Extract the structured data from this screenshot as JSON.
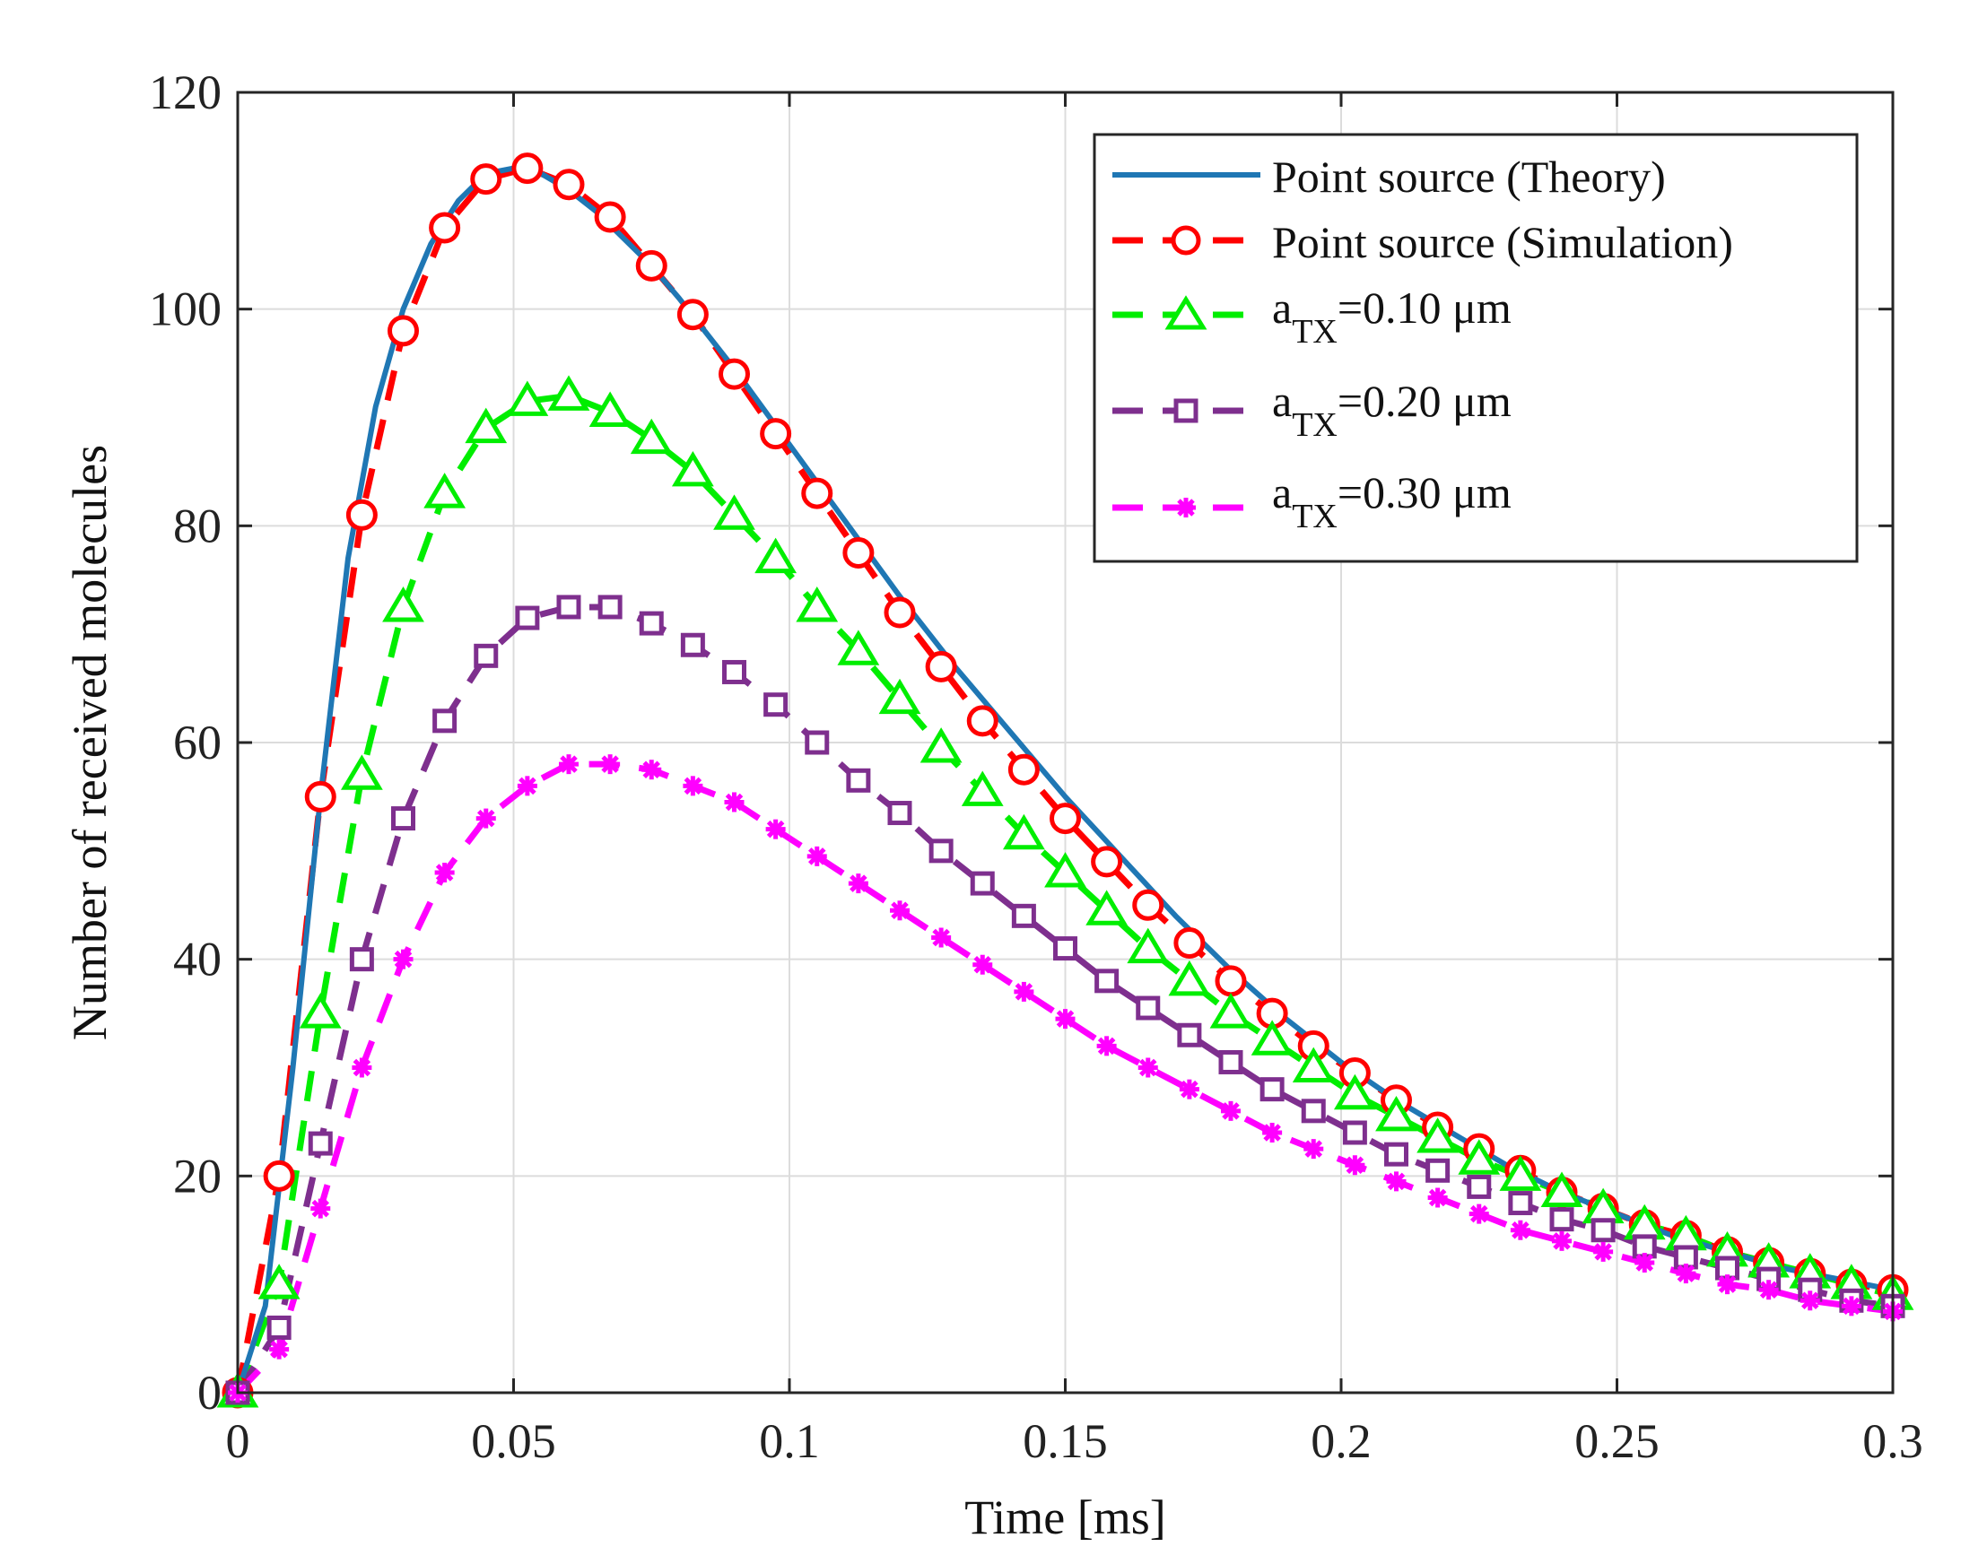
{
  "chart_data": {
    "type": "line",
    "title": "",
    "xlabel": "Time [ms]",
    "ylabel": "Number of received molecules",
    "xlim": [
      0,
      0.3
    ],
    "ylim": [
      0,
      120
    ],
    "grid": true,
    "legend_position": "top-right",
    "xticks": [
      0,
      0.05,
      0.1,
      0.15,
      0.2,
      0.25,
      0.3
    ],
    "xtick_labels": [
      "0",
      "0.05",
      "0.1",
      "0.15",
      "0.2",
      "0.25",
      "0.3"
    ],
    "yticks": [
      0,
      20,
      40,
      60,
      80,
      100,
      120
    ],
    "ytick_labels": [
      "0",
      "20",
      "40",
      "60",
      "80",
      "100",
      "120"
    ],
    "theory": {
      "name": "Point source (Theory)",
      "color": "#1f77b4",
      "style": "solid",
      "x": [
        0,
        0.005,
        0.01,
        0.015,
        0.02,
        0.025,
        0.03,
        0.035,
        0.04,
        0.045,
        0.05,
        0.055,
        0.06,
        0.065,
        0.07,
        0.075,
        0.08,
        0.09,
        0.1,
        0.11,
        0.12,
        0.13,
        0.14,
        0.15,
        0.16,
        0.17,
        0.18,
        0.19,
        0.2,
        0.21,
        0.22,
        0.23,
        0.24,
        0.25,
        0.26,
        0.27,
        0.28,
        0.29,
        0.3
      ],
      "y": [
        0,
        8,
        30,
        55,
        77,
        91,
        100,
        106,
        110,
        112.5,
        113,
        112.5,
        111,
        109,
        106.5,
        104,
        101,
        94.5,
        87.5,
        80.5,
        73.5,
        67,
        61,
        55,
        49.5,
        44,
        39,
        34.5,
        30.5,
        27,
        24,
        21,
        18.5,
        16.5,
        14.5,
        13,
        11.5,
        10.5,
        9.5
      ]
    },
    "series": [
      {
        "name": "Point source (Simulation)",
        "marker": "circle",
        "color": "#ff0000",
        "x": [
          0,
          0.0075,
          0.015,
          0.0225,
          0.03,
          0.0375,
          0.045,
          0.0525,
          0.06,
          0.0675,
          0.075,
          0.0825,
          0.09,
          0.0975,
          0.105,
          0.1125,
          0.12,
          0.1275,
          0.135,
          0.1425,
          0.15,
          0.1575,
          0.165,
          0.1725,
          0.18,
          0.1875,
          0.195,
          0.2025,
          0.21,
          0.2175,
          0.225,
          0.2325,
          0.24,
          0.2475,
          0.255,
          0.2625,
          0.27,
          0.2775,
          0.285,
          0.2925,
          0.3
        ],
        "values": [
          0,
          20,
          55,
          81,
          98,
          107.5,
          112,
          113,
          111.5,
          108.5,
          104,
          99.5,
          94,
          88.5,
          83,
          77.5,
          72,
          67,
          62,
          57.5,
          53,
          49,
          45,
          41.5,
          38,
          35,
          32,
          29.5,
          27,
          24.5,
          22.5,
          20.5,
          18.5,
          17,
          15.5,
          14.5,
          13,
          12,
          11,
          10,
          9.5
        ]
      },
      {
        "name": "a",
        "name_sub": "TX",
        "name_rest": "=0.10 μm",
        "marker": "triangle",
        "color": "#00ee00",
        "x": [
          0,
          0.0075,
          0.015,
          0.0225,
          0.03,
          0.0375,
          0.045,
          0.0525,
          0.06,
          0.0675,
          0.075,
          0.0825,
          0.09,
          0.0975,
          0.105,
          0.1125,
          0.12,
          0.1275,
          0.135,
          0.1425,
          0.15,
          0.1575,
          0.165,
          0.1725,
          0.18,
          0.1875,
          0.195,
          0.2025,
          0.21,
          0.2175,
          0.225,
          0.2325,
          0.24,
          0.2475,
          0.255,
          0.2625,
          0.27,
          0.2775,
          0.285,
          0.2925,
          0.3
        ],
        "values": [
          0,
          10,
          35,
          57,
          72.5,
          83,
          89,
          91.5,
          92,
          90.5,
          88,
          85,
          81,
          77,
          72.5,
          68.5,
          64,
          59.5,
          55.5,
          51.5,
          48,
          44.5,
          41,
          38,
          35,
          32.5,
          30,
          27.5,
          25.5,
          23.5,
          21.5,
          20,
          18.5,
          17,
          15.5,
          14.5,
          13,
          12,
          11,
          10,
          9
        ]
      },
      {
        "name": "a",
        "name_sub": "TX",
        "name_rest": "=0.20 μm",
        "marker": "square",
        "color": "#7e2f8e",
        "x": [
          0,
          0.0075,
          0.015,
          0.0225,
          0.03,
          0.0375,
          0.045,
          0.0525,
          0.06,
          0.0675,
          0.075,
          0.0825,
          0.09,
          0.0975,
          0.105,
          0.1125,
          0.12,
          0.1275,
          0.135,
          0.1425,
          0.15,
          0.1575,
          0.165,
          0.1725,
          0.18,
          0.1875,
          0.195,
          0.2025,
          0.21,
          0.2175,
          0.225,
          0.2325,
          0.24,
          0.2475,
          0.255,
          0.2625,
          0.27,
          0.2775,
          0.285,
          0.2925,
          0.3
        ],
        "values": [
          0,
          6,
          23,
          40,
          53,
          62,
          68,
          71.5,
          72.5,
          72.5,
          71,
          69,
          66.5,
          63.5,
          60,
          56.5,
          53.5,
          50,
          47,
          44,
          41,
          38,
          35.5,
          33,
          30.5,
          28,
          26,
          24,
          22,
          20.5,
          19,
          17.5,
          16,
          15,
          13.5,
          12.5,
          11.5,
          10.5,
          9.5,
          8.5,
          8
        ]
      },
      {
        "name": "a",
        "name_sub": "TX",
        "name_rest": "=0.30 μm",
        "marker": "asterisk",
        "color": "#ff00ff",
        "x": [
          0,
          0.0075,
          0.015,
          0.0225,
          0.03,
          0.0375,
          0.045,
          0.0525,
          0.06,
          0.0675,
          0.075,
          0.0825,
          0.09,
          0.0975,
          0.105,
          0.1125,
          0.12,
          0.1275,
          0.135,
          0.1425,
          0.15,
          0.1575,
          0.165,
          0.1725,
          0.18,
          0.1875,
          0.195,
          0.2025,
          0.21,
          0.2175,
          0.225,
          0.2325,
          0.24,
          0.2475,
          0.255,
          0.2625,
          0.27,
          0.2775,
          0.285,
          0.2925,
          0.3
        ],
        "values": [
          0,
          4,
          17,
          30,
          40,
          48,
          53,
          56,
          58,
          58,
          57.5,
          56,
          54.5,
          52,
          49.5,
          47,
          44.5,
          42,
          39.5,
          37,
          34.5,
          32,
          30,
          28,
          26,
          24,
          22.5,
          21,
          19.5,
          18,
          16.5,
          15,
          14,
          13,
          12,
          11,
          10,
          9.5,
          8.5,
          8,
          7.5
        ]
      }
    ]
  }
}
